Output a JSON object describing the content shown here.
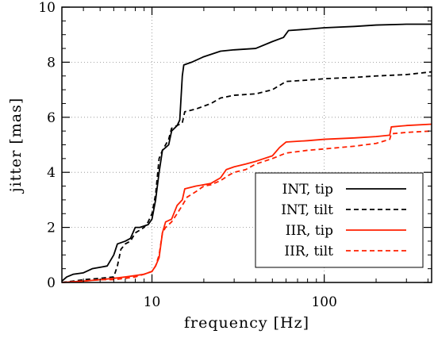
{
  "chart_data": {
    "type": "line",
    "xlabel": "frequency [Hz]",
    "ylabel": "jitter [mas]",
    "xscale": "log",
    "xlim": [
      3,
      420
    ],
    "ylim": [
      0,
      10
    ],
    "x_ticks": [
      10,
      100
    ],
    "x_tick_labels": [
      "10",
      "100"
    ],
    "y_ticks": [
      0,
      2,
      4,
      6,
      8,
      10
    ],
    "y_tick_labels": [
      "0",
      "2",
      "4",
      "6",
      "8",
      "10"
    ],
    "grid": true,
    "legend_position": "bottom-right",
    "series": [
      {
        "name": "INT, tip",
        "color": "#000000",
        "dash": "solid",
        "points": [
          [
            3.0,
            0.05
          ],
          [
            3.2,
            0.2
          ],
          [
            3.5,
            0.3
          ],
          [
            4.0,
            0.35
          ],
          [
            4.5,
            0.5
          ],
          [
            5.0,
            0.55
          ],
          [
            5.5,
            0.6
          ],
          [
            6.0,
            1.0
          ],
          [
            6.3,
            1.4
          ],
          [
            7.0,
            1.5
          ],
          [
            7.5,
            1.6
          ],
          [
            8.0,
            2.0
          ],
          [
            8.5,
            2.0
          ],
          [
            9.0,
            2.05
          ],
          [
            9.5,
            2.1
          ],
          [
            10.0,
            2.3
          ],
          [
            10.5,
            3.0
          ],
          [
            11.0,
            4.0
          ],
          [
            11.5,
            4.8
          ],
          [
            12.0,
            4.9
          ],
          [
            12.5,
            5.0
          ],
          [
            13.0,
            5.5
          ],
          [
            13.5,
            5.6
          ],
          [
            14.0,
            5.7
          ],
          [
            14.5,
            5.9
          ],
          [
            15.0,
            7.5
          ],
          [
            15.3,
            7.9
          ],
          [
            17.0,
            8.0
          ],
          [
            20.0,
            8.2
          ],
          [
            25.0,
            8.4
          ],
          [
            30.0,
            8.45
          ],
          [
            40.0,
            8.5
          ],
          [
            50.0,
            8.75
          ],
          [
            58.0,
            8.9
          ],
          [
            62.0,
            9.15
          ],
          [
            80.0,
            9.2
          ],
          [
            100.0,
            9.25
          ],
          [
            150.0,
            9.3
          ],
          [
            200.0,
            9.35
          ],
          [
            300.0,
            9.38
          ],
          [
            420.0,
            9.38
          ]
        ]
      },
      {
        "name": "INT, tilt",
        "color": "#000000",
        "dash": "dashed",
        "points": [
          [
            3.0,
            0.0
          ],
          [
            3.5,
            0.05
          ],
          [
            4.0,
            0.1
          ],
          [
            5.0,
            0.15
          ],
          [
            6.0,
            0.2
          ],
          [
            6.3,
            0.6
          ],
          [
            6.6,
            1.2
          ],
          [
            7.0,
            1.4
          ],
          [
            7.5,
            1.5
          ],
          [
            8.0,
            1.8
          ],
          [
            8.5,
            1.9
          ],
          [
            9.0,
            2.0
          ],
          [
            9.5,
            2.2
          ],
          [
            10.0,
            2.5
          ],
          [
            10.5,
            3.2
          ],
          [
            11.0,
            4.5
          ],
          [
            11.5,
            4.8
          ],
          [
            12.0,
            5.0
          ],
          [
            12.5,
            5.2
          ],
          [
            13.0,
            5.6
          ],
          [
            14.0,
            5.7
          ],
          [
            15.0,
            5.8
          ],
          [
            15.5,
            6.2
          ],
          [
            18.0,
            6.3
          ],
          [
            22.0,
            6.5
          ],
          [
            25.0,
            6.7
          ],
          [
            30.0,
            6.8
          ],
          [
            40.0,
            6.85
          ],
          [
            50.0,
            7.0
          ],
          [
            60.0,
            7.3
          ],
          [
            80.0,
            7.35
          ],
          [
            100.0,
            7.4
          ],
          [
            150.0,
            7.45
          ],
          [
            200.0,
            7.5
          ],
          [
            300.0,
            7.55
          ],
          [
            420.0,
            7.65
          ]
        ]
      },
      {
        "name": "IIR, tip",
        "color": "#ff2000",
        "dash": "solid",
        "points": [
          [
            3.0,
            0.0
          ],
          [
            4.0,
            0.05
          ],
          [
            5.0,
            0.1
          ],
          [
            6.0,
            0.15
          ],
          [
            7.0,
            0.2
          ],
          [
            8.0,
            0.25
          ],
          [
            9.0,
            0.3
          ],
          [
            10.0,
            0.4
          ],
          [
            10.5,
            0.6
          ],
          [
            11.0,
            0.9
          ],
          [
            11.5,
            1.8
          ],
          [
            12.0,
            2.2
          ],
          [
            13.0,
            2.3
          ],
          [
            14.0,
            2.8
          ],
          [
            15.0,
            3.0
          ],
          [
            15.5,
            3.4
          ],
          [
            18.0,
            3.5
          ],
          [
            20.0,
            3.55
          ],
          [
            22.0,
            3.6
          ],
          [
            25.0,
            3.8
          ],
          [
            27.0,
            4.1
          ],
          [
            30.0,
            4.2
          ],
          [
            35.0,
            4.3
          ],
          [
            40.0,
            4.4
          ],
          [
            50.0,
            4.6
          ],
          [
            55.0,
            4.9
          ],
          [
            60.0,
            5.1
          ],
          [
            80.0,
            5.15
          ],
          [
            100.0,
            5.2
          ],
          [
            150.0,
            5.25
          ],
          [
            200.0,
            5.3
          ],
          [
            240.0,
            5.35
          ],
          [
            245.0,
            5.65
          ],
          [
            300.0,
            5.7
          ],
          [
            420.0,
            5.75
          ]
        ]
      },
      {
        "name": "IIR, tilt",
        "color": "#ff2000",
        "dash": "dashed",
        "points": [
          [
            3.0,
            0.0
          ],
          [
            4.0,
            0.05
          ],
          [
            5.0,
            0.1
          ],
          [
            6.0,
            0.1
          ],
          [
            7.0,
            0.15
          ],
          [
            8.0,
            0.2
          ],
          [
            9.0,
            0.3
          ],
          [
            10.0,
            0.4
          ],
          [
            10.5,
            0.6
          ],
          [
            11.0,
            1.0
          ],
          [
            11.5,
            1.8
          ],
          [
            12.0,
            2.0
          ],
          [
            13.0,
            2.2
          ],
          [
            14.0,
            2.5
          ],
          [
            15.0,
            2.8
          ],
          [
            16.0,
            3.1
          ],
          [
            18.0,
            3.3
          ],
          [
            20.0,
            3.5
          ],
          [
            22.0,
            3.55
          ],
          [
            25.0,
            3.7
          ],
          [
            28.0,
            3.9
          ],
          [
            30.0,
            4.0
          ],
          [
            35.0,
            4.1
          ],
          [
            40.0,
            4.3
          ],
          [
            50.0,
            4.5
          ],
          [
            60.0,
            4.7
          ],
          [
            80.0,
            4.8
          ],
          [
            100.0,
            4.85
          ],
          [
            150.0,
            4.95
          ],
          [
            200.0,
            5.05
          ],
          [
            240.0,
            5.2
          ],
          [
            245.0,
            5.4
          ],
          [
            300.0,
            5.45
          ],
          [
            420.0,
            5.5
          ]
        ]
      }
    ]
  }
}
